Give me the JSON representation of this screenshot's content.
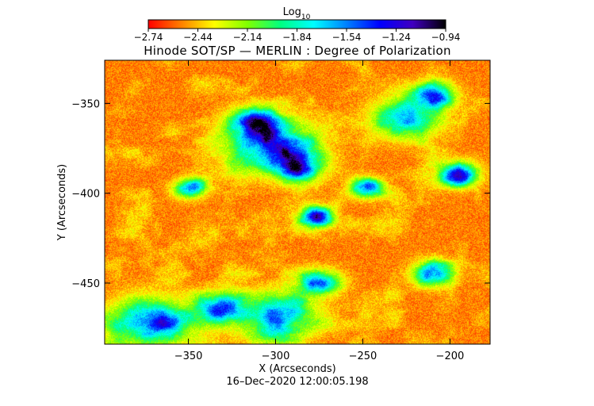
{
  "chart_data": {
    "type": "heatmap",
    "title": "Hinode SOT/SP — MERLIN : Degree of Polarization",
    "colorbar": {
      "label_base": "Log",
      "label_sub": "10",
      "ticks": [
        -2.74,
        -2.44,
        -2.14,
        -1.84,
        -1.54,
        -1.24,
        -0.94
      ],
      "tick_labels": [
        "−2.74",
        "−2.44",
        "−2.14",
        "−1.84",
        "−1.54",
        "−1.24",
        "−0.94"
      ],
      "range": [
        -2.74,
        -0.94
      ],
      "colors": [
        "#ff0000",
        "#ff8000",
        "#ffff00",
        "#80ff00",
        "#00ff80",
        "#00ffff",
        "#0080ff",
        "#0000ff",
        "#4000c0",
        "#000000"
      ]
    },
    "xlabel": "X (Arcseconds)",
    "ylabel": "Y (Arcseconds)",
    "xlim": [
      -398,
      -177
    ],
    "ylim": [
      -484,
      -326
    ],
    "xticks": [
      -350,
      -300,
      -250,
      -200
    ],
    "xtick_labels": [
      "−350",
      "−300",
      "−250",
      "−200"
    ],
    "yticks": [
      -350,
      -400,
      -450
    ],
    "ytick_labels": [
      "−350",
      "−400",
      "−450"
    ],
    "grid": false,
    "timestamp": "16–Dec–2020 12:00:05.198"
  }
}
